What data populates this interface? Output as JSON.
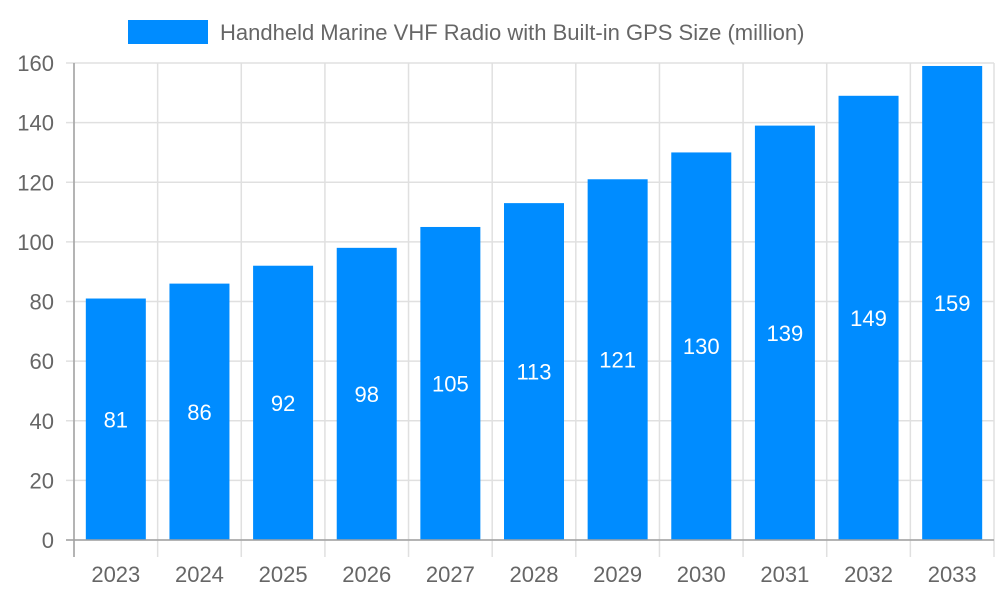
{
  "chart_data": {
    "type": "bar",
    "categories": [
      "2023",
      "2024",
      "2025",
      "2026",
      "2027",
      "2028",
      "2029",
      "2030",
      "2031",
      "2032",
      "2033"
    ],
    "series": [
      {
        "name": "Handheld Marine VHF Radio with Built-in GPS Size (million)",
        "values": [
          81,
          86,
          92,
          98,
          105,
          113,
          121,
          130,
          139,
          149,
          159
        ]
      }
    ],
    "ylim": [
      0,
      160
    ],
    "yticks": [
      0,
      20,
      40,
      60,
      80,
      100,
      120,
      140,
      160
    ],
    "grid": true,
    "legend_position": "top",
    "data_labels": "inside-center",
    "colors": {
      "bar": "#008cff",
      "grid": "#e0e0e0",
      "axis": "#a0a0a0",
      "text": "#666666",
      "label": "#ffffff"
    }
  }
}
